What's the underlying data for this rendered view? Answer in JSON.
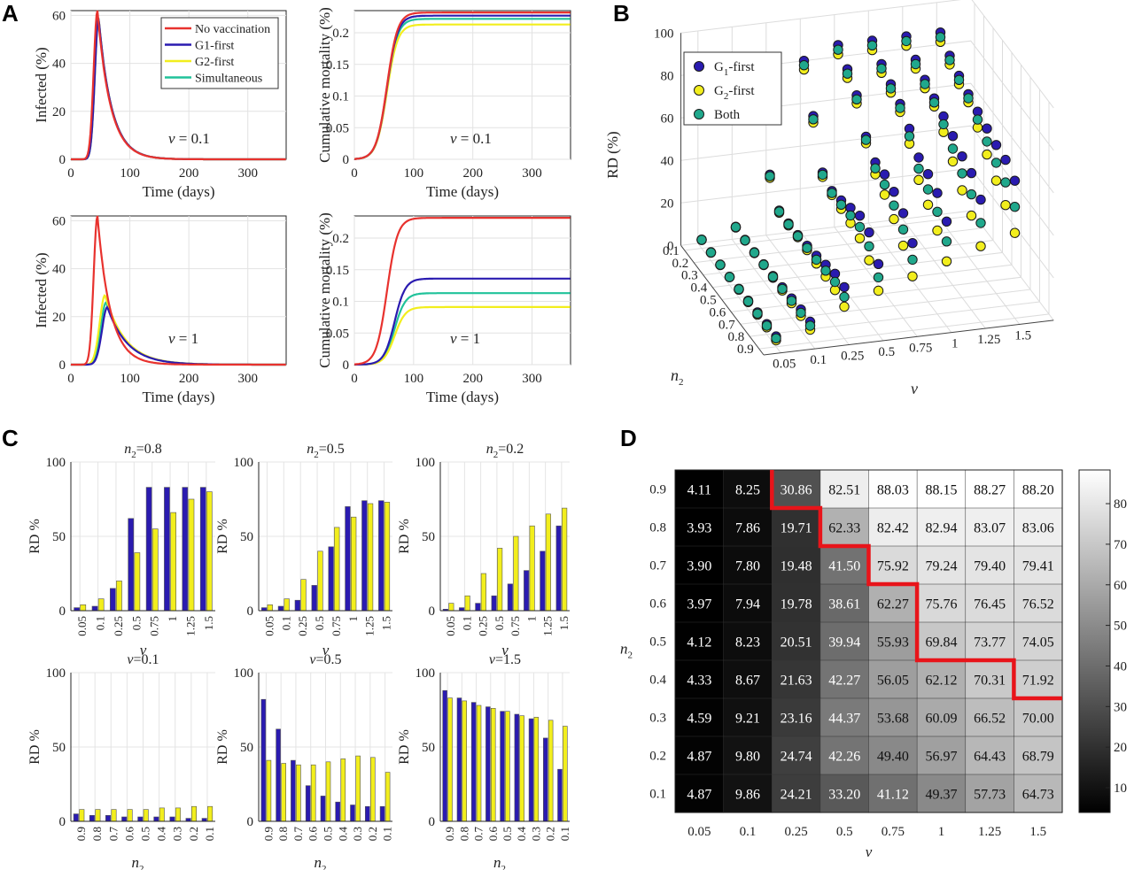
{
  "panel_labels": [
    "A",
    "B",
    "C",
    "D"
  ],
  "chart_data": [
    {
      "panel": "A",
      "type": "line",
      "name": "A1",
      "xlabel": "Time (days)",
      "ylabel": "Infected (%)",
      "xlim": [
        0,
        365
      ],
      "ylim": [
        0,
        62
      ],
      "xticks": [
        0,
        100,
        200,
        300
      ],
      "yticks": [
        0,
        20,
        40,
        60
      ],
      "annotation_italic": "v",
      "annotation_value": " = 0.1",
      "legend": {
        "position": "top-right"
      },
      "series": [
        {
          "name": "No vaccination",
          "color": "#e8322e",
          "peak_x": 45,
          "peak_y": 62
        },
        {
          "name": "G1-first",
          "color": "#2a1bb0",
          "peak_x": 47,
          "peak_y": 59
        },
        {
          "name": "G2-first",
          "color": "#f2ee1d",
          "peak_x": 47,
          "peak_y": 59
        },
        {
          "name": "Simultaneous",
          "color": "#20c29a",
          "peak_x": 47,
          "peak_y": 59
        }
      ]
    },
    {
      "panel": "A",
      "type": "line",
      "name": "A2",
      "xlabel": "Time (days)",
      "ylabel": "Cumulative mortality (%)",
      "xlim": [
        0,
        365
      ],
      "ylim": [
        0,
        0.235
      ],
      "xticks": [
        0,
        100,
        200,
        300
      ],
      "yticks": [
        0,
        0.05,
        0.1,
        0.15,
        0.2
      ],
      "annotation_italic": "v",
      "annotation_value": " = 0.1",
      "series": [
        {
          "name": "No vaccination",
          "color": "#e8322e",
          "final": 0.232
        },
        {
          "name": "G1-first",
          "color": "#2a1bb0",
          "final": 0.227
        },
        {
          "name": "G2-first",
          "color": "#f2ee1d",
          "final": 0.213
        },
        {
          "name": "Simultaneous",
          "color": "#20c29a",
          "final": 0.222
        }
      ]
    },
    {
      "panel": "A",
      "type": "line",
      "name": "A3",
      "xlabel": "Time (days)",
      "ylabel": "Infected (%)",
      "xlim": [
        0,
        365
      ],
      "ylim": [
        0,
        62
      ],
      "xticks": [
        0,
        100,
        200,
        300
      ],
      "yticks": [
        0,
        20,
        40,
        60
      ],
      "annotation_italic": "v",
      "annotation_value": " = 1",
      "series": [
        {
          "name": "No vaccination",
          "color": "#e8322e",
          "peak_x": 45,
          "peak_y": 62
        },
        {
          "name": "G1-first",
          "color": "#2a1bb0",
          "peak_x": 62,
          "peak_y": 24
        },
        {
          "name": "G2-first",
          "color": "#f2ee1d",
          "peak_x": 58,
          "peak_y": 29
        },
        {
          "name": "Simultaneous",
          "color": "#20c29a",
          "peak_x": 60,
          "peak_y": 26
        }
      ]
    },
    {
      "panel": "A",
      "type": "line",
      "name": "A4",
      "xlabel": "Time (days)",
      "ylabel": "Cumulative mortality (%)",
      "xlim": [
        0,
        365
      ],
      "ylim": [
        0,
        0.235
      ],
      "xticks": [
        0,
        100,
        200,
        300
      ],
      "yticks": [
        0,
        0.05,
        0.1,
        0.15,
        0.2
      ],
      "annotation_italic": "v",
      "annotation_value": " = 1",
      "series": [
        {
          "name": "No vaccination",
          "color": "#e8322e",
          "final": 0.232
        },
        {
          "name": "G1-first",
          "color": "#2a1bb0",
          "final": 0.136
        },
        {
          "name": "G2-first",
          "color": "#f2ee1d",
          "final": 0.091
        },
        {
          "name": "Simultaneous",
          "color": "#20c29a",
          "final": 0.113
        }
      ]
    },
    {
      "panel": "B",
      "type": "scatter",
      "name": "B-3d",
      "zlabel": "RD (%)",
      "xlabel": "v",
      "ylabel": "n2",
      "zticks": [
        0,
        20,
        40,
        60,
        80,
        100
      ],
      "vticks": [
        "0.05",
        "0.1",
        "0.25",
        "0.5",
        "0.75",
        "1",
        "1.25",
        "1.5"
      ],
      "nticks": [
        "0.9",
        "0.8",
        "0.7",
        "0.6",
        "0.5",
        "0.4",
        "0.3",
        "0.2",
        "0.1"
      ],
      "legend": {
        "position": "top-left",
        "entries": [
          {
            "label": "G",
            "sub": "1",
            "rest": "-first",
            "color": "#2a1bb0"
          },
          {
            "label": "G",
            "sub": "2",
            "rest": "-first",
            "color": "#f2ee1d"
          },
          {
            "label": "Both",
            "sub": "",
            "rest": "",
            "color": "#20a88c"
          }
        ]
      },
      "series": [
        {
          "name": "G1-first",
          "color": "#2a1bb0"
        },
        {
          "name": "G2-first",
          "color": "#f2ee1d"
        },
        {
          "name": "Both",
          "color": "#20a88c"
        }
      ]
    },
    {
      "panel": "C",
      "type": "bar",
      "name": "C1",
      "title_sym": "n",
      "title_sub": "2",
      "title_val": "=0.8",
      "xlabel": "v",
      "ylabel": "RD %",
      "ylim": [
        0,
        100
      ],
      "yticks": [
        0,
        50,
        100
      ],
      "categories": [
        "0.05",
        "0.1",
        "0.25",
        "0.5",
        "0.75",
        "1",
        "1.25",
        "1.5"
      ],
      "series": [
        {
          "color": "#2a1bb0",
          "values": [
            2,
            3,
            15,
            62,
            83,
            83,
            83,
            83
          ]
        },
        {
          "color": "#f2ee1d",
          "values": [
            4,
            8,
            20,
            39,
            55,
            66,
            75,
            80
          ]
        }
      ]
    },
    {
      "panel": "C",
      "type": "bar",
      "name": "C2",
      "title_sym": "n",
      "title_sub": "2",
      "title_val": "=0.5",
      "xlabel": "v",
      "ylabel": "RD %",
      "ylim": [
        0,
        100
      ],
      "yticks": [
        0,
        50,
        100
      ],
      "categories": [
        "0.05",
        "0.1",
        "0.25",
        "0.5",
        "0.75",
        "1",
        "1.25",
        "1.5"
      ],
      "series": [
        {
          "color": "#2a1bb0",
          "values": [
            2,
            3,
            7,
            17,
            43,
            70,
            74,
            74
          ]
        },
        {
          "color": "#f2ee1d",
          "values": [
            4,
            8,
            21,
            40,
            56,
            63,
            72,
            73
          ]
        }
      ]
    },
    {
      "panel": "C",
      "type": "bar",
      "name": "C3",
      "title_sym": "n",
      "title_sub": "2",
      "title_val": "=0.2",
      "xlabel": "v",
      "ylabel": "RD %",
      "ylim": [
        0,
        100
      ],
      "yticks": [
        0,
        50,
        100
      ],
      "categories": [
        "0.05",
        "0.1",
        "0.25",
        "0.5",
        "0.75",
        "1",
        "1.25",
        "1.5"
      ],
      "series": [
        {
          "color": "#2a1bb0",
          "values": [
            1,
            2,
            5,
            10,
            18,
            27,
            40,
            57
          ]
        },
        {
          "color": "#f2ee1d",
          "values": [
            5,
            10,
            25,
            42,
            50,
            57,
            65,
            69
          ]
        }
      ]
    },
    {
      "panel": "C",
      "type": "bar",
      "name": "C4",
      "title_sym": "v",
      "title_sub": "",
      "title_val": "=0.1",
      "xlabel_sym": "n",
      "xlabel_sub": "2",
      "ylabel": "RD %",
      "ylim": [
        0,
        100
      ],
      "yticks": [
        0,
        50,
        100
      ],
      "categories": [
        "0.9",
        "0.8",
        "0.7",
        "0.6",
        "0.5",
        "0.4",
        "0.3",
        "0.2",
        "0.1"
      ],
      "series": [
        {
          "color": "#2a1bb0",
          "values": [
            5,
            4,
            4,
            3,
            3,
            3,
            3,
            2,
            2
          ]
        },
        {
          "color": "#f2ee1d",
          "values": [
            8,
            8,
            8,
            8,
            8,
            9,
            9,
            10,
            10
          ]
        }
      ]
    },
    {
      "panel": "C",
      "type": "bar",
      "name": "C5",
      "title_sym": "v",
      "title_sub": "",
      "title_val": "=0.5",
      "xlabel_sym": "n",
      "xlabel_sub": "2",
      "ylabel": "RD %",
      "ylim": [
        0,
        100
      ],
      "yticks": [
        0,
        50,
        100
      ],
      "categories": [
        "0.9",
        "0.8",
        "0.7",
        "0.6",
        "0.5",
        "0.4",
        "0.3",
        "0.2",
        "0.1"
      ],
      "series": [
        {
          "color": "#2a1bb0",
          "values": [
            82,
            62,
            41,
            24,
            17,
            13,
            11,
            10,
            10
          ]
        },
        {
          "color": "#f2ee1d",
          "values": [
            41,
            39,
            38,
            38,
            40,
            42,
            44,
            43,
            33
          ]
        }
      ]
    },
    {
      "panel": "C",
      "type": "bar",
      "name": "C6",
      "title_sym": "v",
      "title_sub": "",
      "title_val": "=1.5",
      "xlabel_sym": "n",
      "xlabel_sub": "2",
      "ylabel": "RD %",
      "ylim": [
        0,
        100
      ],
      "yticks": [
        0,
        50,
        100
      ],
      "categories": [
        "0.9",
        "0.8",
        "0.7",
        "0.6",
        "0.5",
        "0.4",
        "0.3",
        "0.2",
        "0.1"
      ],
      "series": [
        {
          "color": "#2a1bb0",
          "values": [
            88,
            83,
            80,
            77,
            74,
            72,
            69,
            56,
            35
          ]
        },
        {
          "color": "#f2ee1d",
          "values": [
            83,
            81,
            78,
            76,
            74,
            71,
            70,
            68,
            64
          ]
        }
      ]
    },
    {
      "panel": "D",
      "type": "heatmap",
      "name": "D-heatmap",
      "xlabel": "v",
      "ylabel_sym": "n",
      "ylabel_sub": "2",
      "x": [
        "0.05",
        "0.1",
        "0.25",
        "0.5",
        "0.75",
        "1",
        "1.25",
        "1.5"
      ],
      "y": [
        "0.9",
        "0.8",
        "0.7",
        "0.6",
        "0.5",
        "0.4",
        "0.3",
        "0.2",
        "0.1"
      ],
      "values": [
        [
          4.11,
          8.25,
          30.86,
          82.51,
          88.03,
          88.15,
          88.27,
          88.2
        ],
        [
          3.93,
          7.86,
          19.71,
          62.33,
          82.42,
          82.94,
          83.07,
          83.06
        ],
        [
          3.9,
          7.8,
          19.48,
          41.5,
          75.92,
          79.24,
          79.4,
          79.41
        ],
        [
          3.97,
          7.94,
          19.78,
          38.61,
          62.27,
          75.76,
          76.45,
          76.52
        ],
        [
          4.12,
          8.23,
          20.51,
          39.94,
          55.93,
          69.84,
          73.77,
          74.05
        ],
        [
          4.33,
          8.67,
          21.63,
          42.27,
          56.05,
          62.12,
          70.31,
          71.92
        ],
        [
          4.59,
          9.21,
          23.16,
          44.37,
          53.68,
          60.09,
          66.52,
          70.0
        ],
        [
          4.87,
          9.8,
          24.74,
          42.26,
          49.4,
          56.97,
          64.43,
          68.79
        ],
        [
          4.87,
          9.86,
          24.21,
          33.2,
          41.12,
          49.37,
          57.73,
          64.73
        ]
      ],
      "colorbar_ticks": [
        10,
        20,
        30,
        40,
        50,
        60,
        70,
        80
      ],
      "colorbar_range": [
        3.9,
        88.3
      ],
      "boundary_color": "#e8141a",
      "boundary_cells": [
        2,
        3,
        4,
        5,
        5,
        7,
        8,
        8,
        8
      ]
    }
  ]
}
